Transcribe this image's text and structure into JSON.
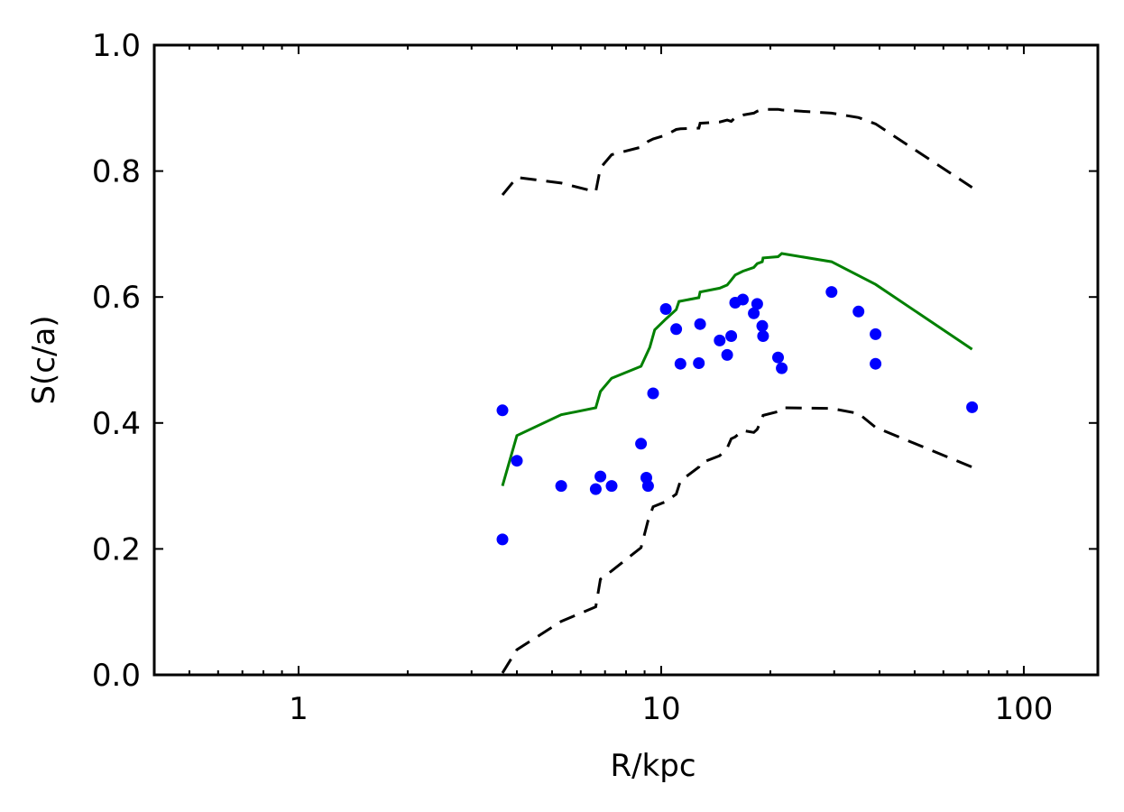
{
  "chart_data": {
    "type": "scatter",
    "xlabel": "R/kpc",
    "ylabel": "S(c/a)",
    "xscale": "log",
    "xlim": [
      0.4,
      160
    ],
    "ylim": [
      0.0,
      1.0
    ],
    "grid": false,
    "x_ticks": [
      {
        "value": 1,
        "label": "1"
      },
      {
        "value": 10,
        "label": "10"
      },
      {
        "value": 100,
        "label": "100"
      }
    ],
    "y_ticks": [
      {
        "value": 0.0,
        "label": "0.0"
      },
      {
        "value": 0.2,
        "label": "0.2"
      },
      {
        "value": 0.4,
        "label": "0.4"
      },
      {
        "value": 0.6,
        "label": "0.6"
      },
      {
        "value": 0.8,
        "label": "0.8"
      },
      {
        "value": 1.0,
        "label": "1.0"
      }
    ],
    "colors": {
      "points": "#0000ff",
      "median": "#008000",
      "bounds": "#000000"
    },
    "points": [
      {
        "x": 3.65,
        "y": 0.42
      },
      {
        "x": 3.65,
        "y": 0.215
      },
      {
        "x": 4.0,
        "y": 0.34
      },
      {
        "x": 5.3,
        "y": 0.3
      },
      {
        "x": 6.6,
        "y": 0.295
      },
      {
        "x": 6.8,
        "y": 0.315
      },
      {
        "x": 7.3,
        "y": 0.3
      },
      {
        "x": 8.8,
        "y": 0.367
      },
      {
        "x": 9.1,
        "y": 0.313
      },
      {
        "x": 9.2,
        "y": 0.3
      },
      {
        "x": 9.5,
        "y": 0.447
      },
      {
        "x": 10.3,
        "y": 0.581
      },
      {
        "x": 11.0,
        "y": 0.549
      },
      {
        "x": 11.3,
        "y": 0.494
      },
      {
        "x": 12.7,
        "y": 0.495
      },
      {
        "x": 12.8,
        "y": 0.557
      },
      {
        "x": 14.5,
        "y": 0.531
      },
      {
        "x": 15.2,
        "y": 0.508
      },
      {
        "x": 15.6,
        "y": 0.538
      },
      {
        "x": 16.0,
        "y": 0.591
      },
      {
        "x": 16.8,
        "y": 0.596
      },
      {
        "x": 18.0,
        "y": 0.574
      },
      {
        "x": 18.4,
        "y": 0.589
      },
      {
        "x": 19.0,
        "y": 0.554
      },
      {
        "x": 19.1,
        "y": 0.538
      },
      {
        "x": 21.0,
        "y": 0.504
      },
      {
        "x": 21.5,
        "y": 0.487
      },
      {
        "x": 29.5,
        "y": 0.608
      },
      {
        "x": 35.0,
        "y": 0.577
      },
      {
        "x": 39.0,
        "y": 0.541
      },
      {
        "x": 39.0,
        "y": 0.494
      },
      {
        "x": 72.0,
        "y": 0.425
      }
    ],
    "series": [
      {
        "style": "solid",
        "x": [
          3.65,
          4.0,
          5.3,
          6.6,
          6.8,
          7.3,
          8.8,
          9.3,
          9.6,
          10.3,
          11.0,
          11.2,
          12.7,
          12.8,
          14.5,
          15.2,
          15.6,
          16.0,
          16.8,
          18.0,
          18.4,
          19.0,
          19.1,
          21.0,
          21.5,
          29.5,
          39.0,
          72.0
        ],
        "y": [
          0.3,
          0.38,
          0.413,
          0.424,
          0.45,
          0.471,
          0.49,
          0.52,
          0.548,
          0.565,
          0.58,
          0.593,
          0.599,
          0.608,
          0.614,
          0.619,
          0.627,
          0.635,
          0.641,
          0.647,
          0.653,
          0.656,
          0.662,
          0.664,
          0.669,
          0.656,
          0.62,
          0.517
        ]
      },
      {
        "style": "dashed",
        "x": [
          3.65,
          4.0,
          5.3,
          6.6,
          6.8,
          7.3,
          8.8,
          9.2,
          9.5,
          10.3,
          11.0,
          11.3,
          12.7,
          12.8,
          14.5,
          15.2,
          15.6,
          16.0,
          16.8,
          18.0,
          18.4,
          19.0,
          19.1,
          21.0,
          21.5,
          29.5,
          35.0,
          39.0,
          72.0
        ],
        "y": [
          0.762,
          0.79,
          0.781,
          0.767,
          0.805,
          0.826,
          0.838,
          0.847,
          0.851,
          0.857,
          0.866,
          0.867,
          0.868,
          0.876,
          0.878,
          0.881,
          0.879,
          0.885,
          0.889,
          0.892,
          0.895,
          0.898,
          0.898,
          0.898,
          0.897,
          0.892,
          0.885,
          0.875,
          0.774
        ]
      },
      {
        "style": "dashed",
        "x": [
          3.65,
          4.0,
          5.3,
          6.6,
          6.8,
          7.3,
          8.8,
          9.2,
          9.5,
          10.3,
          11.0,
          11.3,
          12.7,
          12.8,
          14.5,
          15.2,
          15.6,
          16.0,
          16.8,
          18.0,
          18.4,
          19.0,
          19.1,
          21.0,
          21.5,
          29.5,
          35.0,
          39.0,
          72.0
        ],
        "y": [
          0.003,
          0.04,
          0.085,
          0.108,
          0.152,
          0.165,
          0.202,
          0.245,
          0.267,
          0.275,
          0.287,
          0.308,
          0.33,
          0.336,
          0.348,
          0.36,
          0.375,
          0.378,
          0.388,
          0.385,
          0.39,
          0.407,
          0.412,
          0.418,
          0.424,
          0.423,
          0.415,
          0.393,
          0.33
        ]
      }
    ]
  }
}
